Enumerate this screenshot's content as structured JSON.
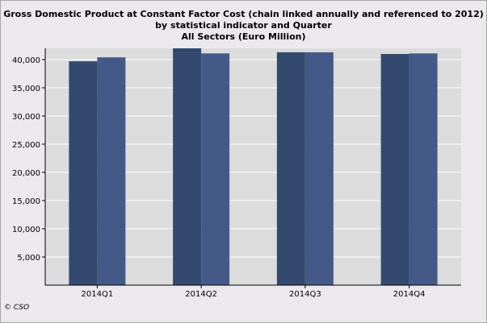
{
  "chart_data": {
    "type": "bar",
    "title_lines": [
      "Gross Domestic Product at Constant Factor Cost (chain linked annually and referenced to 2012)",
      "by statistical indicator and Quarter",
      "All Sectors (Euro Million)"
    ],
    "categories": [
      "2014Q1",
      "2014Q2",
      "2014Q3",
      "2014Q4"
    ],
    "series": [
      {
        "values": [
          39700,
          42000,
          41300,
          41000
        ]
      },
      {
        "values": [
          40400,
          41100,
          41300,
          41100
        ]
      }
    ],
    "ylim": [
      0,
      42000
    ],
    "yticks": [
      5000,
      10000,
      15000,
      20000,
      25000,
      30000,
      35000,
      40000
    ],
    "ytick_labels": [
      "5,000",
      "10,000",
      "15,000",
      "20,000",
      "25,000",
      "30,000",
      "35,000",
      "40,000"
    ],
    "grid": true,
    "colors": {
      "series1": "#334a6e",
      "series2": "#435a89",
      "plot_bg": "#dcdcdc",
      "grid": "#ffffff"
    }
  },
  "footer": {
    "copyright": "© CSO"
  }
}
